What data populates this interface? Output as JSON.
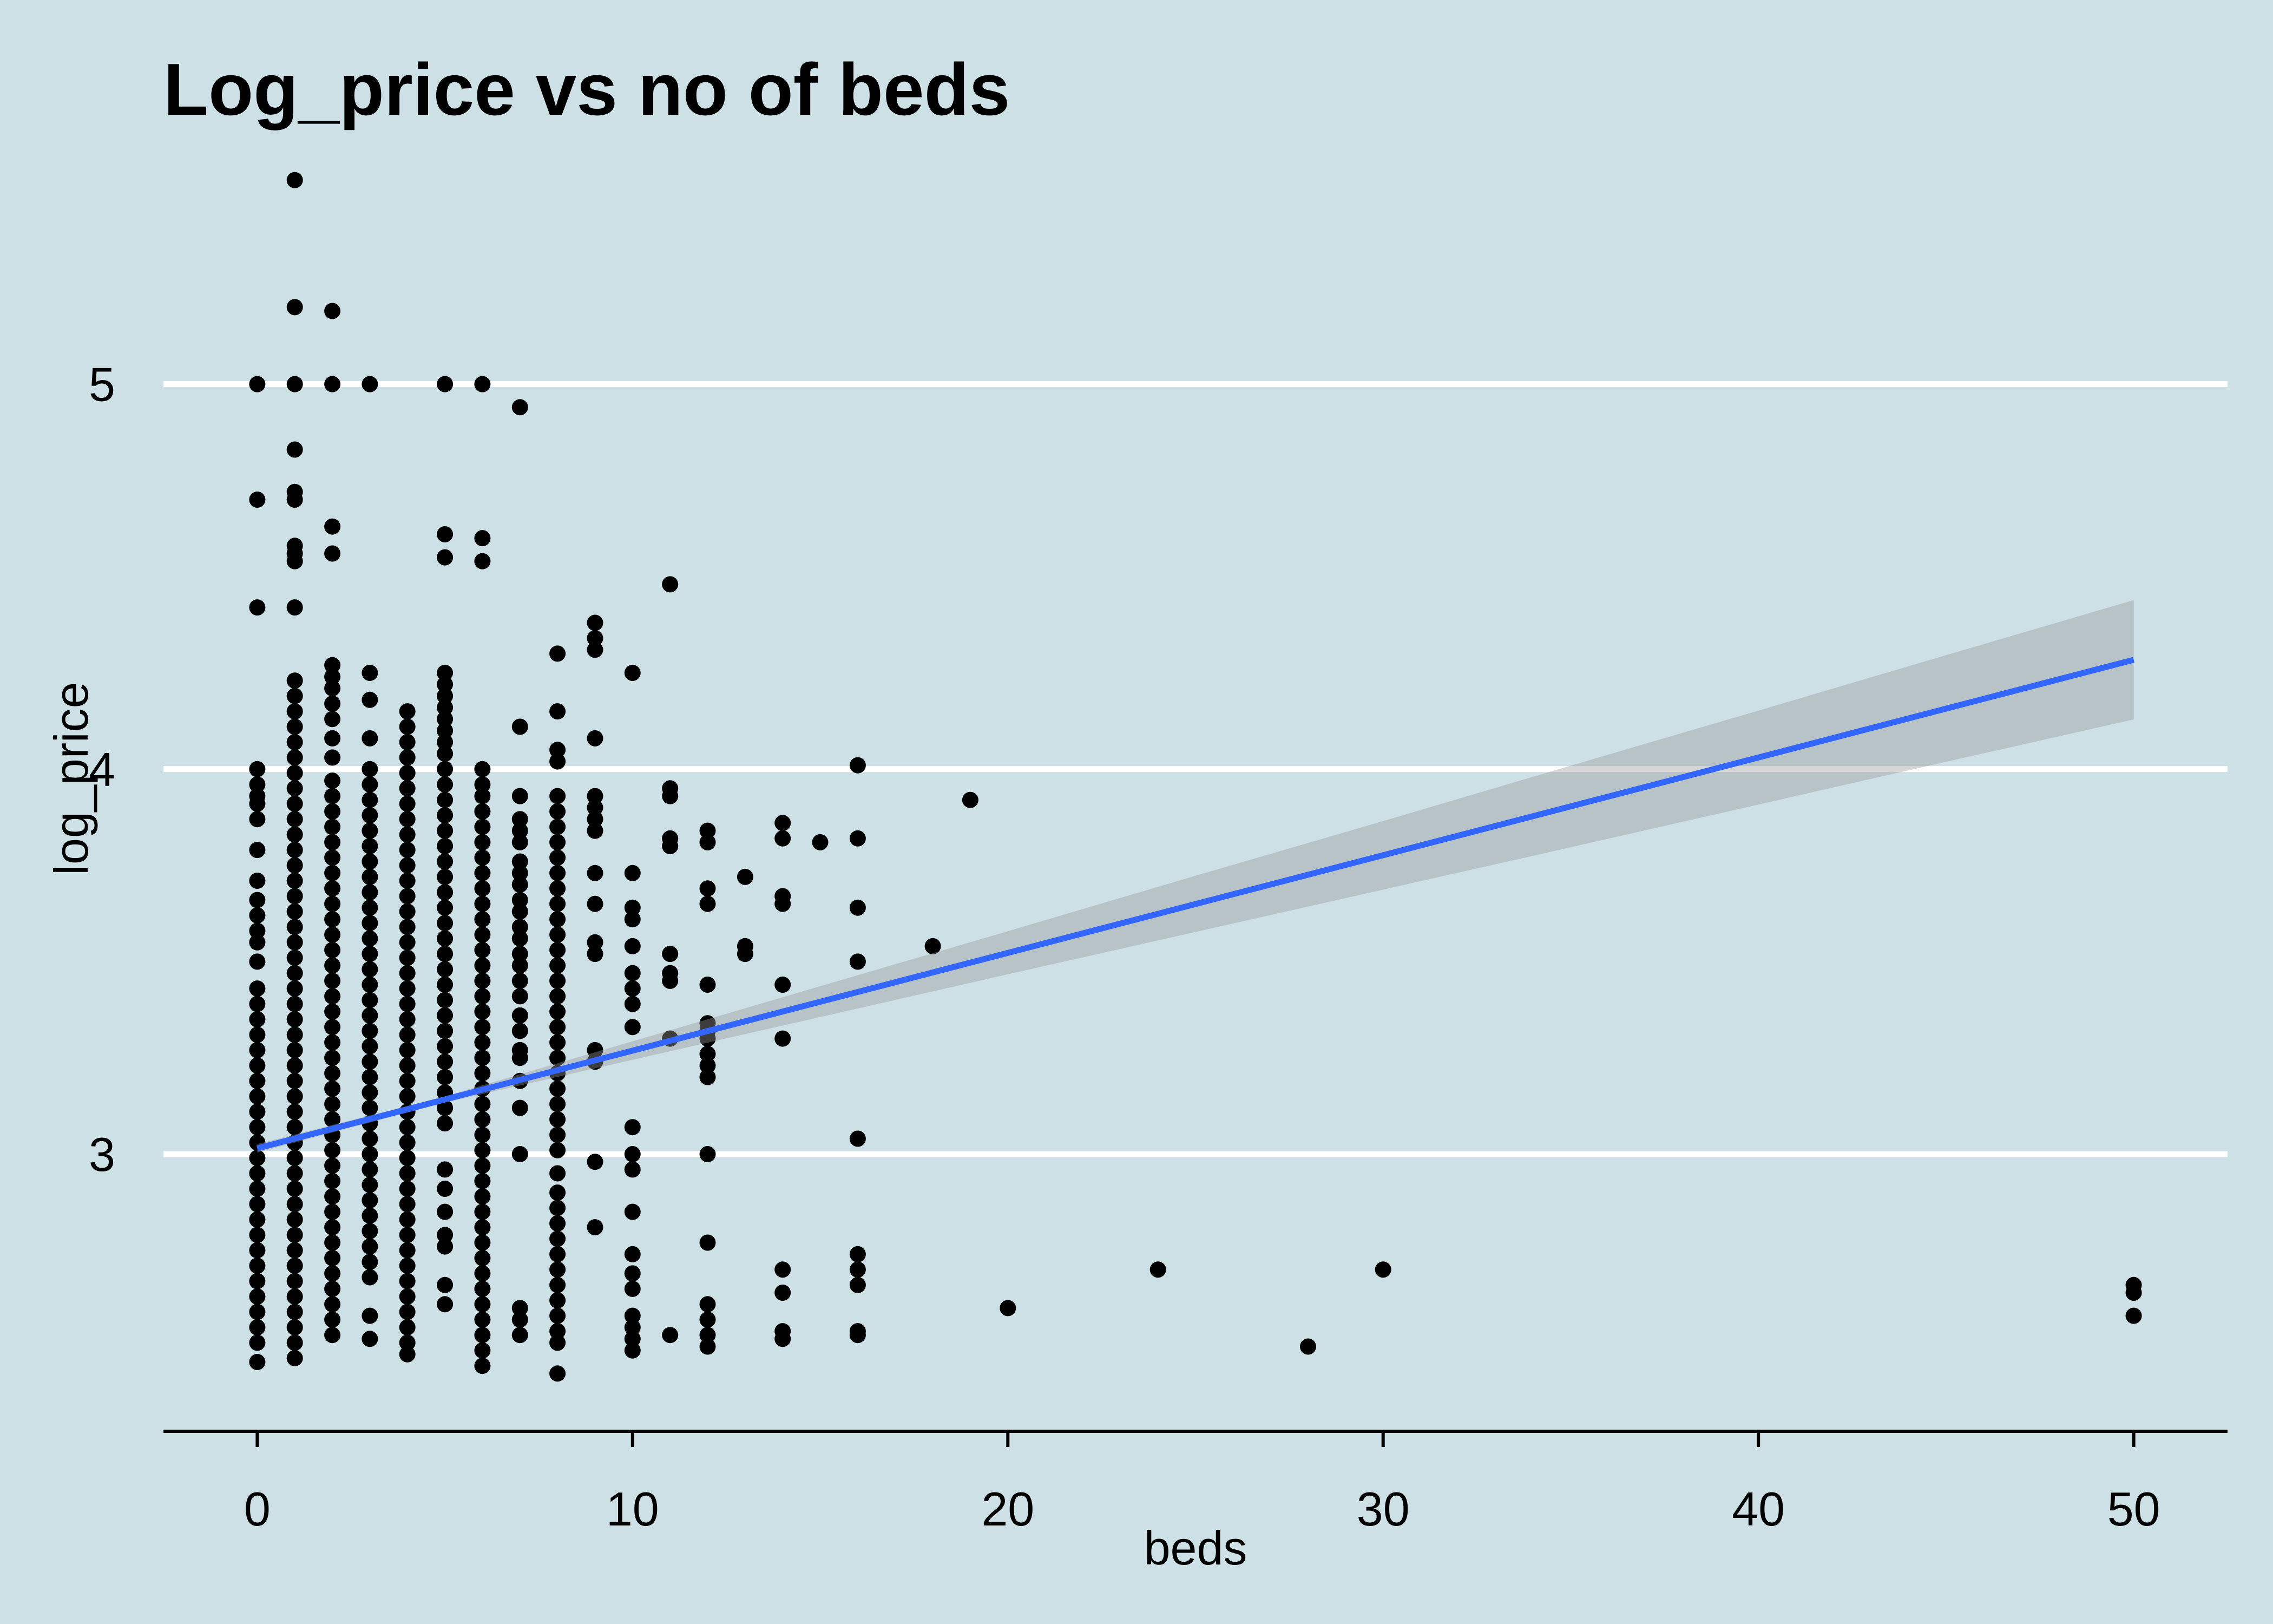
{
  "chart_data": {
    "type": "scatter",
    "title": "Log_price vs no of beds",
    "xlabel": "beds",
    "ylabel": "log_price",
    "xlim": [
      -2.5,
      52.5
    ],
    "ylim": [
      2.28,
      5.68
    ],
    "x_ticks": [
      0,
      10,
      20,
      30,
      40,
      50
    ],
    "y_ticks": [
      3,
      4,
      5
    ],
    "grid": "horizontal",
    "points": [
      {
        "x": 0,
        "y": [
          5.0,
          4.7,
          4.42,
          4.0,
          3.96,
          3.93,
          3.91,
          3.87,
          3.79,
          3.71,
          3.66,
          3.62,
          3.58,
          3.55,
          3.5,
          3.43,
          3.39,
          3.35,
          3.31,
          3.27,
          3.23,
          3.19,
          3.15,
          3.11,
          3.07,
          3.03,
          2.99,
          2.95,
          2.91,
          2.87,
          2.83,
          2.79,
          2.75,
          2.71,
          2.67,
          2.63,
          2.59,
          2.55,
          2.51,
          2.46
        ]
      },
      {
        "x": 1,
        "y": [
          5.53,
          5.2,
          5.0,
          4.83,
          4.72,
          4.7,
          4.58,
          4.56,
          4.54,
          4.42,
          4.23,
          4.19,
          4.15,
          4.11,
          4.07,
          4.03,
          3.99,
          3.95,
          3.91,
          3.87,
          3.83,
          3.79,
          3.75,
          3.71,
          3.67,
          3.63,
          3.59,
          3.55,
          3.51,
          3.47,
          3.43,
          3.39,
          3.35,
          3.31,
          3.27,
          3.23,
          3.19,
          3.15,
          3.11,
          3.07,
          3.03,
          2.99,
          2.95,
          2.91,
          2.87,
          2.83,
          2.79,
          2.75,
          2.71,
          2.67,
          2.63,
          2.59,
          2.55,
          2.51,
          2.47
        ]
      },
      {
        "x": 2,
        "y": [
          5.19,
          5.0,
          4.63,
          4.56,
          4.27,
          4.24,
          4.21,
          4.17,
          4.13,
          4.08,
          4.03,
          3.97,
          3.93,
          3.89,
          3.85,
          3.81,
          3.77,
          3.73,
          3.69,
          3.65,
          3.61,
          3.57,
          3.53,
          3.49,
          3.45,
          3.41,
          3.37,
          3.33,
          3.29,
          3.25,
          3.21,
          3.17,
          3.13,
          3.09,
          3.05,
          3.01,
          2.97,
          2.93,
          2.89,
          2.85,
          2.81,
          2.77,
          2.73,
          2.69,
          2.65,
          2.61,
          2.57,
          2.53
        ]
      },
      {
        "x": 3,
        "y": [
          5.0,
          4.25,
          4.18,
          4.08,
          4.0,
          3.96,
          3.92,
          3.88,
          3.84,
          3.8,
          3.76,
          3.72,
          3.68,
          3.64,
          3.6,
          3.56,
          3.52,
          3.48,
          3.44,
          3.4,
          3.36,
          3.32,
          3.28,
          3.24,
          3.2,
          3.16,
          3.12,
          3.08,
          3.04,
          3.0,
          2.96,
          2.92,
          2.88,
          2.84,
          2.8,
          2.76,
          2.72,
          2.68,
          2.58,
          2.52
        ]
      },
      {
        "x": 4,
        "y": [
          4.15,
          4.11,
          4.07,
          4.03,
          3.99,
          3.95,
          3.91,
          3.87,
          3.83,
          3.79,
          3.75,
          3.71,
          3.67,
          3.63,
          3.59,
          3.55,
          3.51,
          3.47,
          3.43,
          3.39,
          3.35,
          3.31,
          3.27,
          3.23,
          3.19,
          3.15,
          3.11,
          3.07,
          3.03,
          2.99,
          2.95,
          2.91,
          2.87,
          2.83,
          2.79,
          2.75,
          2.71,
          2.67,
          2.63,
          2.59,
          2.55,
          2.51,
          2.48
        ]
      },
      {
        "x": 5,
        "y": [
          5.0,
          4.61,
          4.55,
          4.25,
          4.22,
          4.19,
          4.16,
          4.13,
          4.1,
          4.07,
          4.04,
          4.0,
          3.96,
          3.92,
          3.88,
          3.84,
          3.8,
          3.76,
          3.72,
          3.68,
          3.64,
          3.6,
          3.56,
          3.52,
          3.48,
          3.44,
          3.4,
          3.36,
          3.32,
          3.28,
          3.24,
          3.2,
          3.16,
          3.12,
          3.08,
          2.96,
          2.91,
          2.85,
          2.79,
          2.76,
          2.66,
          2.61
        ]
      },
      {
        "x": 6,
        "y": [
          5.0,
          4.6,
          4.54,
          4.0,
          3.96,
          3.93,
          3.89,
          3.85,
          3.81,
          3.77,
          3.73,
          3.69,
          3.65,
          3.61,
          3.57,
          3.53,
          3.49,
          3.45,
          3.41,
          3.37,
          3.33,
          3.29,
          3.25,
          3.21,
          3.17,
          3.13,
          3.09,
          3.05,
          3.01,
          2.97,
          2.93,
          2.89,
          2.85,
          2.81,
          2.77,
          2.73,
          2.69,
          2.65,
          2.61,
          2.57,
          2.53,
          2.49,
          2.45
        ]
      },
      {
        "x": 7,
        "y": [
          4.94,
          4.11,
          3.93,
          3.87,
          3.84,
          3.81,
          3.76,
          3.73,
          3.7,
          3.66,
          3.63,
          3.59,
          3.56,
          3.52,
          3.49,
          3.45,
          3.41,
          3.36,
          3.32,
          3.27,
          3.25,
          3.19,
          3.12,
          3.0,
          2.6,
          2.57,
          2.53
        ]
      },
      {
        "x": 8,
        "y": [
          4.3,
          4.15,
          4.05,
          4.02,
          3.93,
          3.89,
          3.85,
          3.81,
          3.77,
          3.73,
          3.69,
          3.65,
          3.61,
          3.57,
          3.53,
          3.49,
          3.45,
          3.41,
          3.37,
          3.33,
          3.29,
          3.25,
          3.21,
          3.17,
          3.13,
          3.09,
          3.05,
          3.01,
          2.95,
          2.9,
          2.86,
          2.82,
          2.78,
          2.74,
          2.7,
          2.66,
          2.62,
          2.58,
          2.54,
          2.51,
          2.43
        ]
      },
      {
        "x": 9,
        "y": [
          4.38,
          4.34,
          4.31,
          4.08,
          3.93,
          3.9,
          3.87,
          3.84,
          3.73,
          3.65,
          3.55,
          3.52,
          3.27,
          3.24,
          2.98,
          2.81
        ]
      },
      {
        "x": 10,
        "y": [
          4.25,
          3.73,
          3.64,
          3.61,
          3.54,
          3.47,
          3.43,
          3.39,
          3.33,
          3.07,
          3.0,
          2.96,
          2.85,
          2.74,
          2.69,
          2.65,
          2.58,
          2.55,
          2.52,
          2.49
        ]
      },
      {
        "x": 11,
        "y": [
          4.48,
          3.95,
          3.93,
          3.82,
          3.8,
          3.52,
          3.47,
          3.45,
          3.3,
          2.53
        ]
      },
      {
        "x": 12,
        "y": [
          3.84,
          3.81,
          3.69,
          3.65,
          3.44,
          3.34,
          3.32,
          3.3,
          3.26,
          3.23,
          3.2,
          3.0,
          2.77,
          2.61,
          2.57,
          2.53,
          2.5
        ]
      },
      {
        "x": 13,
        "y": [
          3.72,
          3.54,
          3.52
        ]
      },
      {
        "x": 14,
        "y": [
          3.86,
          3.82,
          3.67,
          3.65,
          3.44,
          3.3,
          2.7,
          2.64,
          2.54,
          2.52
        ]
      },
      {
        "x": 15,
        "y": [
          3.81
        ]
      },
      {
        "x": 16,
        "y": [
          4.01,
          3.82,
          3.64,
          3.5,
          3.04,
          2.74,
          2.7,
          2.66,
          2.54,
          2.53
        ]
      },
      {
        "x": 18,
        "y": [
          3.54
        ]
      },
      {
        "x": 19,
        "y": [
          3.92
        ]
      },
      {
        "x": 20,
        "y": [
          2.6
        ]
      },
      {
        "x": 24,
        "y": [
          2.7
        ]
      },
      {
        "x": 28,
        "y": [
          2.5
        ]
      },
      {
        "x": 30,
        "y": [
          2.7
        ]
      },
      {
        "x": 50,
        "y": [
          2.66,
          2.64,
          2.58
        ]
      }
    ],
    "trend_line": {
      "x": [
        0,
        50
      ],
      "y": [
        3.015,
        4.284
      ]
    },
    "confidence_band": {
      "x": [
        0,
        5,
        10,
        15,
        20,
        25,
        30,
        35,
        40,
        45,
        50
      ],
      "lower": [
        3.004,
        3.134,
        3.245,
        3.356,
        3.467,
        3.577,
        3.687,
        3.797,
        3.908,
        4.019,
        4.129
      ],
      "upper": [
        3.026,
        3.15,
        3.293,
        3.436,
        3.579,
        3.723,
        3.865,
        4.009,
        4.152,
        4.296,
        4.439
      ]
    }
  },
  "colors": {
    "background": "#cde0e6",
    "point": "#000000",
    "grid": "#ffffff",
    "trend_line": "#3366ff",
    "band": "#999999",
    "axis": "#000000",
    "text": "#000000"
  }
}
